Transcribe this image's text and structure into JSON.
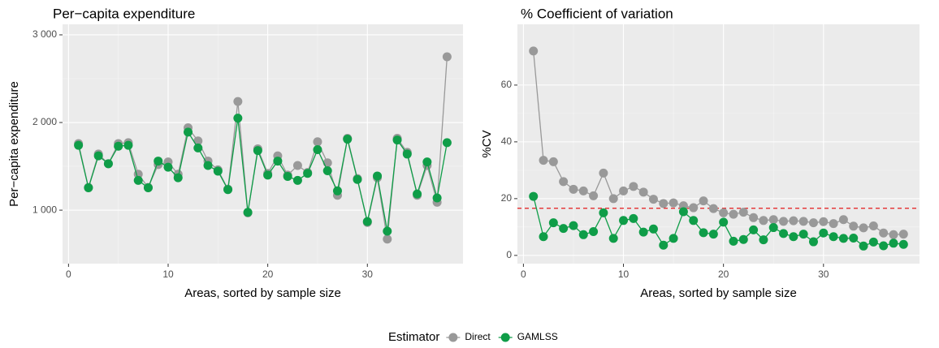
{
  "chart_data": [
    {
      "type": "line",
      "title": "Per−capita expenditure",
      "x_label": "Areas, sorted by sample size",
      "y_label": "Per−capita expenditure",
      "legend_title": "Estimator",
      "legend": "bottom",
      "grid": true,
      "x": [
        1,
        2,
        3,
        4,
        5,
        6,
        7,
        8,
        9,
        10,
        11,
        12,
        13,
        14,
        15,
        16,
        17,
        18,
        19,
        20,
        21,
        22,
        23,
        24,
        25,
        26,
        27,
        28,
        29,
        30,
        31,
        32,
        33,
        34,
        35,
        36,
        37,
        38
      ],
      "xlim": [
        -0.6,
        39.6
      ],
      "xticks": [
        0,
        10,
        20,
        30
      ],
      "ylim": [
        390,
        3120
      ],
      "yticks": [
        {
          "value": 1000,
          "label": "1 000"
        },
        {
          "value": 2000,
          "label": "2 000"
        },
        {
          "value": 3000,
          "label": "3 000"
        }
      ],
      "series": [
        {
          "name": "Direct",
          "color": "#999999",
          "values": [
            1760,
            1260,
            1640,
            1530,
            1760,
            1770,
            1410,
            1260,
            1520,
            1550,
            1410,
            1940,
            1790,
            1560,
            1460,
            1240,
            2240,
            970,
            1700,
            1420,
            1620,
            1400,
            1510,
            1430,
            1780,
            1540,
            1170,
            1820,
            1360,
            860,
            1370,
            670,
            1820,
            1660,
            1170,
            1510,
            1090,
            2750
          ]
        },
        {
          "name": "GAMLSS",
          "color": "#0f9d48",
          "values": [
            1740,
            1255,
            1620,
            1530,
            1730,
            1740,
            1340,
            1255,
            1560,
            1490,
            1370,
            1890,
            1710,
            1510,
            1445,
            1235,
            2050,
            975,
            1680,
            1400,
            1560,
            1385,
            1340,
            1420,
            1690,
            1450,
            1220,
            1810,
            1350,
            870,
            1390,
            760,
            1800,
            1640,
            1185,
            1550,
            1140,
            1770
          ]
        }
      ]
    },
    {
      "type": "line",
      "title": "% Coefficient of variation",
      "x_label": "Areas, sorted by sample size",
      "y_label": "%CV",
      "grid": true,
      "x": [
        1,
        2,
        3,
        4,
        5,
        6,
        7,
        8,
        9,
        10,
        11,
        12,
        13,
        14,
        15,
        16,
        17,
        18,
        19,
        20,
        21,
        22,
        23,
        24,
        25,
        26,
        27,
        28,
        29,
        30,
        31,
        32,
        33,
        34,
        35,
        36,
        37,
        38
      ],
      "xlim": [
        -0.6,
        39.6
      ],
      "xticks": [
        0,
        10,
        20,
        30
      ],
      "ylim": [
        -2.9,
        81.4
      ],
      "yticks": [
        0,
        20,
        40,
        60
      ],
      "hline": {
        "value": 16.6,
        "color": "#e41a1c"
      },
      "series": [
        {
          "name": "Direct",
          "color": "#999999",
          "values": [
            72,
            33.5,
            33,
            26,
            23.3,
            22.7,
            21,
            29,
            20,
            22.7,
            24.3,
            22.3,
            19.8,
            18.3,
            18.5,
            17.5,
            16.8,
            19.2,
            16.5,
            15,
            14.5,
            15.2,
            13.3,
            12.3,
            12.6,
            12,
            12.2,
            12,
            11.5,
            11.9,
            11.2,
            12.6,
            10.3,
            9.7,
            10.4,
            7.9,
            7.3,
            7.5
          ]
        },
        {
          "name": "GAMLSS",
          "color": "#0f9d48",
          "values": [
            20.8,
            6.6,
            11.5,
            9.5,
            10.5,
            7.3,
            8.4,
            15,
            6,
            12.3,
            13,
            8.2,
            9.3,
            3.6,
            6,
            15.4,
            12.3,
            8,
            7.5,
            11.7,
            5,
            5.6,
            9,
            5.5,
            9.8,
            7.7,
            6.6,
            7.5,
            4.8,
            7.9,
            6.6,
            6,
            6.1,
            3.3,
            4.7,
            3.4,
            4.3,
            3.9
          ]
        }
      ]
    }
  ]
}
